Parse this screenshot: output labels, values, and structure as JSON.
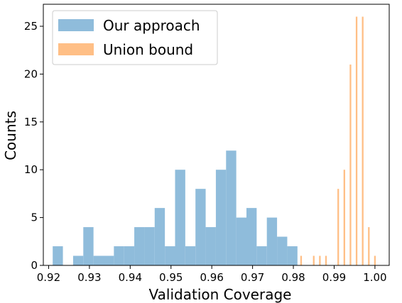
{
  "chart_data": {
    "type": "bar",
    "xlabel": "Validation Coverage",
    "ylabel": "Counts",
    "xlim": [
      0.9187,
      1.0035
    ],
    "ylim": [
      0,
      27.3
    ],
    "x_ticks": [
      0.92,
      0.93,
      0.94,
      0.95,
      0.96,
      0.97,
      0.98,
      0.99,
      1.0
    ],
    "x_tick_labels": [
      "0.92",
      "0.93",
      "0.94",
      "0.95",
      "0.96",
      "0.97",
      "0.98",
      "0.99",
      "1.00"
    ],
    "y_ticks": [
      0,
      5,
      10,
      15,
      20,
      25
    ],
    "y_tick_labels": [
      "0",
      "5",
      "10",
      "15",
      "20",
      "25"
    ],
    "grid": false,
    "legend": "top-left",
    "series": [
      {
        "name": "Our approach",
        "color": "#8fbcdb",
        "bin_width": 0.0025,
        "bins": [
          {
            "x": 0.921,
            "count": 2
          },
          {
            "x": 0.926,
            "count": 1
          },
          {
            "x": 0.9285,
            "count": 4
          },
          {
            "x": 0.931,
            "count": 1
          },
          {
            "x": 0.9335,
            "count": 1
          },
          {
            "x": 0.936,
            "count": 2
          },
          {
            "x": 0.9385,
            "count": 2
          },
          {
            "x": 0.941,
            "count": 4
          },
          {
            "x": 0.9435,
            "count": 4
          },
          {
            "x": 0.946,
            "count": 6
          },
          {
            "x": 0.9485,
            "count": 2
          },
          {
            "x": 0.951,
            "count": 10
          },
          {
            "x": 0.9535,
            "count": 2
          },
          {
            "x": 0.956,
            "count": 8
          },
          {
            "x": 0.9585,
            "count": 4
          },
          {
            "x": 0.961,
            "count": 10
          },
          {
            "x": 0.9635,
            "count": 12
          },
          {
            "x": 0.966,
            "count": 5
          },
          {
            "x": 0.9685,
            "count": 6
          },
          {
            "x": 0.971,
            "count": 2
          },
          {
            "x": 0.9735,
            "count": 5
          },
          {
            "x": 0.976,
            "count": 3
          },
          {
            "x": 0.9785,
            "count": 2
          }
        ]
      },
      {
        "name": "Union bound",
        "color": "#ffbf86",
        "bin_width": 0.0004,
        "bins": [
          {
            "x": 0.9817,
            "count": 1
          },
          {
            "x": 0.9848,
            "count": 1
          },
          {
            "x": 0.9863,
            "count": 1
          },
          {
            "x": 0.9878,
            "count": 1
          },
          {
            "x": 0.9908,
            "count": 8
          },
          {
            "x": 0.9923,
            "count": 10
          },
          {
            "x": 0.9938,
            "count": 21
          },
          {
            "x": 0.9953,
            "count": 26
          },
          {
            "x": 0.9968,
            "count": 26
          },
          {
            "x": 0.9983,
            "count": 4
          },
          {
            "x": 0.9998,
            "count": 1
          }
        ]
      }
    ]
  }
}
